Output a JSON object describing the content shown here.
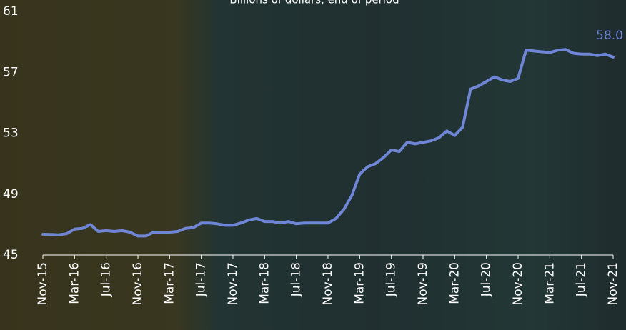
{
  "chart_data": {
    "type": "line",
    "title": "Billions of dollars, end of period",
    "categories": [
      "Nov-15",
      null,
      null,
      null,
      "Mar-16",
      null,
      null,
      null,
      "Jul-16",
      null,
      null,
      null,
      "Nov-16",
      null,
      null,
      null,
      "Mar-17",
      null,
      null,
      null,
      "Jul-17",
      null,
      null,
      null,
      "Nov-17",
      null,
      null,
      null,
      "Mar-18",
      null,
      null,
      null,
      "Jul-18",
      null,
      null,
      null,
      "Nov-18",
      null,
      null,
      null,
      "Mar-19",
      null,
      null,
      null,
      "Jul-19",
      null,
      null,
      null,
      "Nov-19",
      null,
      null,
      null,
      "Mar-20",
      null,
      null,
      null,
      "Jul-20",
      null,
      null,
      null,
      "Nov-20",
      null,
      null,
      null,
      "Mar-21",
      null,
      null,
      null,
      "Jul-21",
      null,
      null,
      null,
      "Nov-21"
    ],
    "values": [
      46.36,
      46.35,
      46.33,
      46.4,
      46.7,
      46.75,
      47.0,
      46.55,
      46.6,
      46.55,
      46.6,
      46.5,
      46.25,
      46.25,
      46.5,
      46.5,
      46.5,
      46.55,
      46.75,
      46.8,
      47.1,
      47.1,
      47.05,
      46.95,
      46.95,
      47.1,
      47.3,
      47.4,
      47.2,
      47.2,
      47.1,
      47.2,
      47.05,
      47.1,
      47.1,
      47.1,
      47.1,
      47.4,
      48.0,
      48.9,
      50.3,
      50.8,
      51.0,
      51.4,
      51.9,
      51.8,
      52.4,
      52.3,
      52.4,
      52.5,
      52.7,
      53.15,
      52.85,
      53.4,
      55.9,
      56.1,
      56.4,
      56.7,
      56.5,
      56.4,
      56.6,
      58.45,
      58.4,
      58.35,
      58.3,
      58.45,
      58.5,
      58.25,
      58.2,
      58.2,
      58.1,
      58.2,
      58.0
    ],
    "value_labels": [
      null,
      null,
      null,
      null,
      null,
      null,
      null,
      null,
      null,
      null,
      null,
      null,
      null,
      null,
      null,
      null,
      null,
      null,
      null,
      null,
      null,
      null,
      null,
      null,
      null,
      null,
      null,
      null,
      null,
      null,
      null,
      null,
      null,
      null,
      null,
      null,
      null,
      null,
      null,
      null,
      null,
      null,
      null,
      null,
      null,
      null,
      null,
      null,
      null,
      null,
      null,
      null,
      null,
      null,
      null,
      null,
      null,
      null,
      null,
      null,
      null,
      null,
      null,
      null,
      null,
      null,
      null,
      null,
      null,
      null,
      null,
      null,
      "58.0"
    ],
    "color": "#6f86d6",
    "ylim": [
      45,
      61
    ],
    "yticks": [
      45,
      49,
      53,
      57,
      61
    ]
  }
}
